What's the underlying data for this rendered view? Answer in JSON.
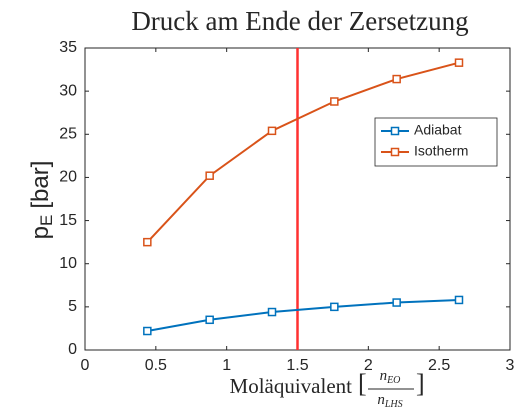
{
  "chart_data": {
    "type": "line",
    "title": "Druck am Ende der Zersetzung",
    "ylabel": {
      "base": "p",
      "sub": "E",
      "unit": "[bar]"
    },
    "xlabel": {
      "text": "Moläquivalent",
      "open": "[",
      "close": "]",
      "numerator": {
        "base": "n",
        "sub": "EO"
      },
      "denominator": {
        "base": "n",
        "sub": "LHS"
      }
    },
    "x": [
      0.44,
      0.88,
      1.32,
      1.76,
      2.2,
      2.64
    ],
    "series": [
      {
        "name": "Adiabat",
        "color": "#0072bd",
        "values": [
          2.2,
          3.5,
          4.4,
          5.0,
          5.5,
          5.8
        ]
      },
      {
        "name": "Isotherm",
        "color": "#d95319",
        "values": [
          12.5,
          20.2,
          25.4,
          28.8,
          31.4,
          33.3
        ]
      }
    ],
    "vline": {
      "x": 1.5,
      "color": "#ff3030"
    },
    "xlim": [
      0,
      3
    ],
    "xticks": [
      0,
      0.5,
      1,
      1.5,
      2,
      2.5,
      3
    ],
    "ylim": [
      0,
      35
    ],
    "yticks": [
      0,
      5,
      10,
      15,
      20,
      25,
      30,
      35
    ],
    "grid": false,
    "legend": "northeast"
  }
}
